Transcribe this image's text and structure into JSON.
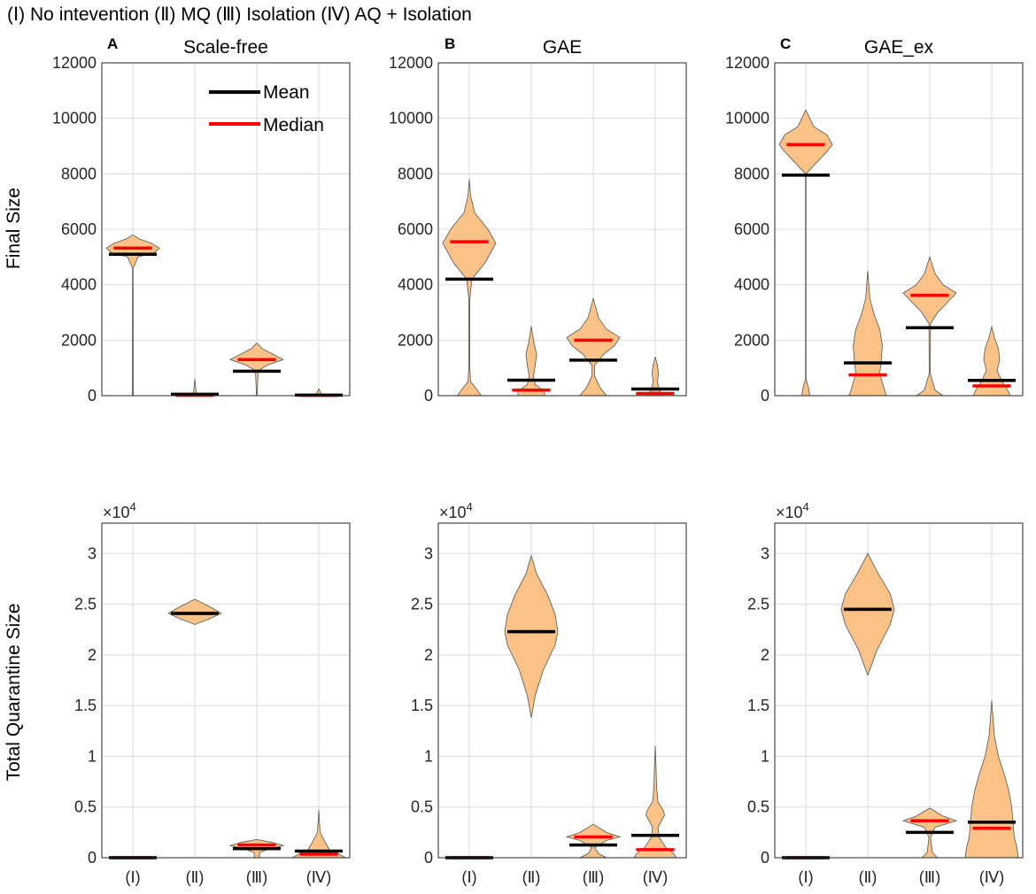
{
  "header": {
    "legend_line": "(Ⅰ) No intevention (Ⅱ) MQ (Ⅲ) Isolation (Ⅳ) AQ + Isolation"
  },
  "colors": {
    "violin_fill": "#fbc287",
    "violin_edge": "#555555",
    "mean": "#000000",
    "median": "#ff0000",
    "grid": "#dcdcdc"
  },
  "legend": {
    "mean_label": "Mean",
    "median_label": "Median"
  },
  "chart_data": [
    {
      "type": "violin",
      "panel": "A",
      "title": "Scale-free",
      "ylabel": "Final Size",
      "categories": [
        "(Ⅰ)",
        "(Ⅱ)",
        "(Ⅲ)",
        "(Ⅳ)"
      ],
      "ylim": [
        0,
        12000
      ],
      "yticks": [
        "0",
        "2000",
        "4000",
        "6000",
        "8000",
        "10000",
        "12000"
      ],
      "exponent": "",
      "mean": [
        5100,
        50,
        880,
        20
      ],
      "median": [
        5320,
        10,
        1300,
        10
      ],
      "range": [
        [
          0,
          5800
        ],
        [
          0,
          600
        ],
        [
          0,
          1900
        ],
        [
          0,
          250
        ]
      ],
      "shapes": [
        [
          [
            0,
            0.02
          ],
          [
            4600,
            0.01
          ],
          [
            5000,
            0.2
          ],
          [
            5150,
            0.8
          ],
          [
            5320,
            1
          ],
          [
            5500,
            0.7
          ],
          [
            5650,
            0.25
          ],
          [
            5800,
            0
          ]
        ],
        [
          [
            0,
            0.5
          ],
          [
            40,
            0.3
          ],
          [
            100,
            0.05
          ],
          [
            600,
            0
          ]
        ],
        [
          [
            0,
            0.02
          ],
          [
            200,
            0.02
          ],
          [
            900,
            0.05
          ],
          [
            1100,
            0.4
          ],
          [
            1300,
            1
          ],
          [
            1500,
            0.6
          ],
          [
            1700,
            0.2
          ],
          [
            1900,
            0
          ]
        ],
        [
          [
            0,
            0.25
          ],
          [
            40,
            0.1
          ],
          [
            250,
            0
          ]
        ]
      ]
    },
    {
      "type": "violin",
      "panel": "B",
      "title": "GAE",
      "ylabel": "",
      "categories": [
        "(Ⅰ)",
        "(Ⅱ)",
        "(Ⅲ)",
        "(Ⅳ)"
      ],
      "ylim": [
        0,
        12000
      ],
      "yticks": [
        "0",
        "2000",
        "4000",
        "6000",
        "8000",
        "10000",
        "12000"
      ],
      "exponent": "",
      "mean": [
        4200,
        560,
        1280,
        240
      ],
      "median": [
        5550,
        200,
        2000,
        80
      ],
      "range": [
        [
          0,
          7800
        ],
        [
          0,
          2500
        ],
        [
          0,
          3500
        ],
        [
          0,
          1400
        ]
      ],
      "shapes": [
        [
          [
            0,
            0.45
          ],
          [
            200,
            0.3
          ],
          [
            500,
            0.05
          ],
          [
            1000,
            0.02
          ],
          [
            3500,
            0.02
          ],
          [
            4200,
            0.1
          ],
          [
            4800,
            0.6
          ],
          [
            5500,
            1
          ],
          [
            6000,
            0.7
          ],
          [
            6600,
            0.2
          ],
          [
            7200,
            0.05
          ],
          [
            7800,
            0
          ]
        ],
        [
          [
            0,
            0.5
          ],
          [
            150,
            0.5
          ],
          [
            400,
            0.15
          ],
          [
            700,
            0.08
          ],
          [
            1100,
            0.15
          ],
          [
            1500,
            0.2
          ],
          [
            1900,
            0.1
          ],
          [
            2500,
            0
          ]
        ],
        [
          [
            0,
            0.5
          ],
          [
            300,
            0.25
          ],
          [
            700,
            0.05
          ],
          [
            1100,
            0.05
          ],
          [
            1500,
            0.4
          ],
          [
            1800,
            0.8
          ],
          [
            2100,
            1
          ],
          [
            2400,
            0.5
          ],
          [
            2800,
            0.2
          ],
          [
            3500,
            0
          ]
        ],
        [
          [
            0,
            0.3
          ],
          [
            200,
            0.15
          ],
          [
            500,
            0.08
          ],
          [
            800,
            0.12
          ],
          [
            1100,
            0.08
          ],
          [
            1400,
            0
          ]
        ]
      ]
    },
    {
      "type": "violin",
      "panel": "C",
      "title": "GAE_ex",
      "ylabel": "",
      "categories": [
        "(Ⅰ)",
        "(Ⅱ)",
        "(Ⅲ)",
        "(Ⅳ)"
      ],
      "ylim": [
        0,
        12000
      ],
      "yticks": [
        "0",
        "2000",
        "4000",
        "6000",
        "8000",
        "10000",
        "12000"
      ],
      "exponent": "",
      "mean": [
        7950,
        1180,
        2450,
        550
      ],
      "median": [
        9050,
        750,
        3620,
        350
      ],
      "range": [
        [
          0,
          10300
        ],
        [
          0,
          4500
        ],
        [
          0,
          5000
        ],
        [
          0,
          2500
        ]
      ],
      "shapes": [
        [
          [
            0,
            0.15
          ],
          [
            300,
            0.1
          ],
          [
            600,
            0.01
          ],
          [
            8000,
            0.01
          ],
          [
            8500,
            0.5
          ],
          [
            8800,
            0.8
          ],
          [
            9050,
            1
          ],
          [
            9400,
            0.8
          ],
          [
            9700,
            0.3
          ],
          [
            10300,
            0
          ]
        ],
        [
          [
            0,
            0.7
          ],
          [
            300,
            0.6
          ],
          [
            800,
            0.45
          ],
          [
            1200,
            0.5
          ],
          [
            1800,
            0.55
          ],
          [
            2400,
            0.45
          ],
          [
            2900,
            0.25
          ],
          [
            3500,
            0.08
          ],
          [
            4500,
            0
          ]
        ],
        [
          [
            0,
            0.5
          ],
          [
            200,
            0.2
          ],
          [
            800,
            0.02
          ],
          [
            2600,
            0.03
          ],
          [
            3000,
            0.3
          ],
          [
            3400,
            0.7
          ],
          [
            3700,
            1
          ],
          [
            4000,
            0.5
          ],
          [
            4400,
            0.2
          ],
          [
            5000,
            0
          ]
        ],
        [
          [
            0,
            0.7
          ],
          [
            200,
            0.6
          ],
          [
            500,
            0.4
          ],
          [
            900,
            0.2
          ],
          [
            1300,
            0.3
          ],
          [
            1700,
            0.25
          ],
          [
            2100,
            0.1
          ],
          [
            2500,
            0
          ]
        ]
      ]
    },
    {
      "type": "violin",
      "panel": "",
      "title": "",
      "ylabel": "Total Quarantine Size",
      "categories": [
        "(Ⅰ)",
        "(Ⅱ)",
        "(Ⅲ)",
        "(Ⅳ)"
      ],
      "ylim": [
        0,
        33000
      ],
      "yticks": [
        "0",
        "0.5",
        "1",
        "1.5",
        "2",
        "2.5",
        "3"
      ],
      "exponent": "4",
      "mean": [
        0,
        24100,
        900,
        650
      ],
      "median": [
        0,
        24100,
        1250,
        350
      ],
      "range": [
        [
          0,
          0
        ],
        [
          23000,
          25500
        ],
        [
          0,
          1800
        ],
        [
          0,
          4700
        ]
      ],
      "shapes": [
        [],
        [
          [
            23000,
            0
          ],
          [
            23500,
            0.5
          ],
          [
            24100,
            1
          ],
          [
            24700,
            0.6
          ],
          [
            25500,
            0
          ]
        ],
        [
          [
            0,
            0.1
          ],
          [
            500,
            0.1
          ],
          [
            800,
            0.4
          ],
          [
            1200,
            1
          ],
          [
            1500,
            0.6
          ],
          [
            1800,
            0
          ]
        ],
        [
          [
            0,
            1
          ],
          [
            300,
            0.8
          ],
          [
            800,
            0.4
          ],
          [
            1500,
            0.25
          ],
          [
            2500,
            0.05
          ],
          [
            4700,
            0
          ]
        ]
      ]
    },
    {
      "type": "violin",
      "panel": "",
      "title": "",
      "ylabel": "",
      "categories": [
        "(Ⅰ)",
        "(Ⅱ)",
        "(Ⅲ)",
        "(Ⅳ)"
      ],
      "ylim": [
        0,
        33000
      ],
      "yticks": [
        "0",
        "0.5",
        "1",
        "1.5",
        "2",
        "2.5",
        "3"
      ],
      "exponent": "4",
      "mean": [
        0,
        22300,
        1250,
        2200
      ],
      "median": [
        0,
        22300,
        2050,
        800
      ],
      "range": [
        [
          0,
          0
        ],
        [
          13800,
          29800
        ],
        [
          0,
          3300
        ],
        [
          0,
          11000
        ]
      ],
      "shapes": [
        [],
        [
          [
            13800,
            0
          ],
          [
            16000,
            0.15
          ],
          [
            18500,
            0.45
          ],
          [
            21000,
            0.9
          ],
          [
            22300,
            1
          ],
          [
            24000,
            0.9
          ],
          [
            26000,
            0.6
          ],
          [
            28000,
            0.2
          ],
          [
            29800,
            0
          ]
        ],
        [
          [
            0,
            0.5
          ],
          [
            400,
            0.2
          ],
          [
            1000,
            0.05
          ],
          [
            1700,
            0.5
          ],
          [
            2050,
            1
          ],
          [
            2500,
            0.5
          ],
          [
            3300,
            0
          ]
        ],
        [
          [
            0,
            0.8
          ],
          [
            400,
            0.7
          ],
          [
            1000,
            0.4
          ],
          [
            2000,
            0.15
          ],
          [
            3000,
            0.1
          ],
          [
            4200,
            0.35
          ],
          [
            4700,
            0.3
          ],
          [
            5500,
            0.1
          ],
          [
            7000,
            0.05
          ],
          [
            9000,
            0.03
          ],
          [
            11000,
            0
          ]
        ]
      ]
    },
    {
      "type": "violin",
      "panel": "",
      "title": "",
      "ylabel": "",
      "categories": [
        "(Ⅰ)",
        "(Ⅱ)",
        "(Ⅲ)",
        "(Ⅳ)"
      ],
      "ylim": [
        0,
        33000
      ],
      "yticks": [
        "0",
        "0.5",
        "1",
        "1.5",
        "2",
        "2.5",
        "3"
      ],
      "exponent": "4",
      "mean": [
        0,
        24500,
        2500,
        3500
      ],
      "median": [
        0,
        24500,
        3650,
        2900
      ],
      "range": [
        [
          0,
          0
        ],
        [
          18000,
          30000
        ],
        [
          0,
          4900
        ],
        [
          0,
          15500
        ]
      ],
      "shapes": [
        [],
        [
          [
            18000,
            0
          ],
          [
            20500,
            0.35
          ],
          [
            23000,
            0.85
          ],
          [
            24500,
            1
          ],
          [
            26000,
            0.85
          ],
          [
            28000,
            0.4
          ],
          [
            30000,
            0
          ]
        ],
        [
          [
            0,
            0.3
          ],
          [
            500,
            0.1
          ],
          [
            2000,
            0.03
          ],
          [
            3000,
            0.2
          ],
          [
            3650,
            1
          ],
          [
            4100,
            0.5
          ],
          [
            4900,
            0
          ]
        ],
        [
          [
            0,
            1
          ],
          [
            1000,
            0.95
          ],
          [
            2000,
            0.85
          ],
          [
            3500,
            0.8
          ],
          [
            5000,
            0.75
          ],
          [
            6500,
            0.65
          ],
          [
            8000,
            0.5
          ],
          [
            10000,
            0.25
          ],
          [
            12000,
            0.1
          ],
          [
            15500,
            0
          ]
        ]
      ]
    }
  ]
}
